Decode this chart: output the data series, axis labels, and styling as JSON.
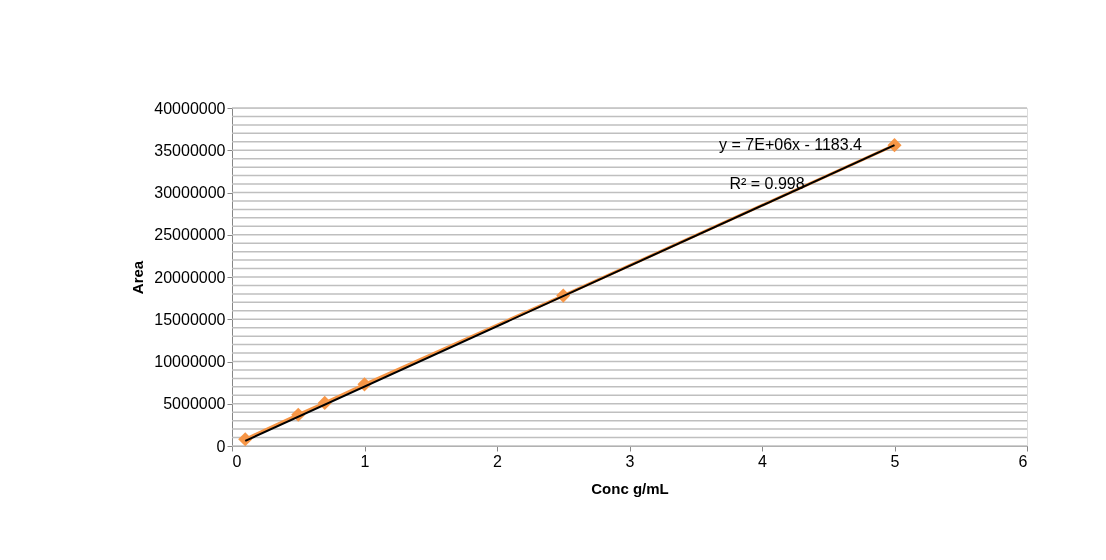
{
  "chart_data": {
    "type": "scatter",
    "xlabel": "Conc g/mL",
    "ylabel": "Area",
    "x": [
      0.1,
      0.5,
      0.7,
      1,
      2.5,
      5
    ],
    "series": [
      {
        "type": "line",
        "marker": "diamond",
        "color": "#f79646",
        "values": [
          800000,
          3700000,
          5100000,
          7300000,
          17800000,
          35600000
        ]
      },
      {
        "type": "line",
        "marker": "none",
        "color": "#000000",
        "x": [
          0.1,
          5
        ],
        "values": [
          600000,
          35600000
        ]
      }
    ],
    "annotations": [
      "y = 7E+06x - 1183.4",
      "R² = 0.998"
    ],
    "xlim": [
      0,
      6
    ],
    "xticks": [
      0,
      1,
      2,
      3,
      4,
      5,
      6
    ],
    "ylim": [
      0,
      40000000
    ],
    "yticks": [
      0,
      {
        "value": 1000000,
        "label": null
      },
      {
        "value": 2000000,
        "label": null
      },
      {
        "value": 3000000,
        "label": null
      },
      {
        "value": 4000000,
        "label": null
      },
      5000000,
      {
        "value": 6000000,
        "label": null
      },
      {
        "value": 7000000,
        "label": null
      },
      {
        "value": 8000000,
        "label": null
      },
      {
        "value": 9000000,
        "label": null
      },
      10000000,
      {
        "value": 11000000,
        "label": null
      },
      {
        "value": 12000000,
        "label": null
      },
      {
        "value": 13000000,
        "label": null
      },
      {
        "value": 14000000,
        "label": null
      },
      15000000,
      {
        "value": 16000000,
        "label": null
      },
      {
        "value": 17000000,
        "label": null
      },
      {
        "value": 18000000,
        "label": null
      },
      {
        "value": 19000000,
        "label": null
      },
      20000000,
      {
        "value": 21000000,
        "label": null
      },
      {
        "value": 22000000,
        "label": null
      },
      {
        "value": 23000000,
        "label": null
      },
      {
        "value": 24000000,
        "label": null
      },
      25000000,
      {
        "value": 26000000,
        "label": null
      },
      {
        "value": 27000000,
        "label": null
      },
      {
        "value": 28000000,
        "label": null
      },
      {
        "value": 29000000,
        "label": null
      },
      30000000,
      {
        "value": 31000000,
        "label": null
      },
      {
        "value": 32000000,
        "label": null
      },
      {
        "value": 33000000,
        "label": null
      },
      {
        "value": 34000000,
        "label": null
      },
      35000000,
      {
        "value": 36000000,
        "label": null
      },
      {
        "value": 37000000,
        "label": null
      },
      {
        "value": 38000000,
        "label": null
      },
      {
        "value": 39000000,
        "label": null
      },
      40000000
    ],
    "grid": "y"
  }
}
